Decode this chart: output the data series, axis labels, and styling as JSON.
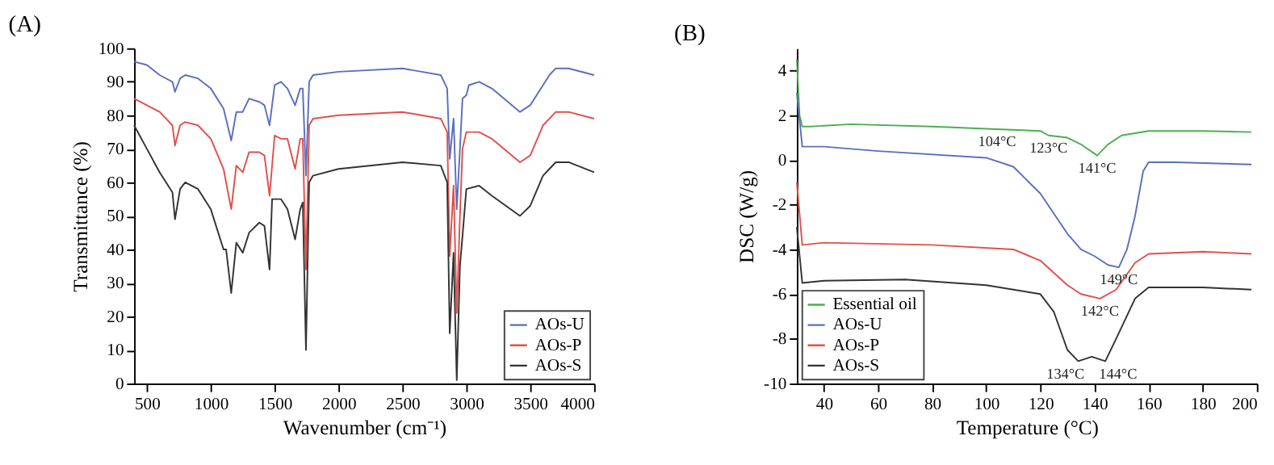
{
  "chart_data": [
    {
      "type": "line",
      "title": "(A)",
      "xlabel": "Wavenumber (cm⁻¹)",
      "ylabel": "Transmittance (%)",
      "xlim": [
        400,
        4000
      ],
      "xticks": [
        500,
        1000,
        1500,
        2000,
        2500,
        3000,
        3500,
        4000
      ],
      "ylim": [
        0,
        100
      ],
      "yticks": [
        0,
        10,
        20,
        30,
        40,
        50,
        60,
        70,
        80,
        90,
        100
      ],
      "grid": false,
      "legend": "bottom right",
      "marker": "none",
      "line_style": "solid",
      "series": [
        {
          "name": "AOs-U",
          "color": "#5a6fc0",
          "x": [
            400,
            500,
            600,
            700,
            720,
            760,
            800,
            900,
            1000,
            1100,
            1160,
            1200,
            1250,
            1300,
            1380,
            1420,
            1460,
            1500,
            1550,
            1600,
            1660,
            1700,
            1720,
            1745,
            1770,
            1800,
            2000,
            2500,
            2800,
            2850,
            2870,
            2900,
            2925,
            2950,
            2970,
            3000,
            3020,
            3100,
            3200,
            3420,
            3500,
            3600,
            3650,
            3700,
            3800,
            4000
          ],
          "values": [
            96,
            95,
            92,
            90,
            87,
            91,
            92,
            91,
            88,
            82,
            72.5,
            81,
            81,
            85,
            84,
            83,
            77,
            89,
            90,
            88,
            83,
            88,
            88,
            62,
            90,
            92,
            93,
            94,
            92,
            88,
            67,
            79,
            52,
            70,
            85,
            86,
            89,
            90,
            88,
            81,
            83,
            89,
            92,
            94,
            94,
            92
          ]
        },
        {
          "name": "AOs-P",
          "color": "#e0504a",
          "x": [
            400,
            500,
            600,
            700,
            720,
            760,
            800,
            900,
            1000,
            1100,
            1160,
            1200,
            1250,
            1300,
            1380,
            1420,
            1460,
            1500,
            1550,
            1600,
            1660,
            1700,
            1720,
            1745,
            1770,
            1800,
            2000,
            2500,
            2800,
            2850,
            2870,
            2900,
            2925,
            2950,
            2970,
            3000,
            3100,
            3200,
            3420,
            3500,
            3600,
            3700,
            3800,
            4000
          ],
          "values": [
            85,
            83,
            81,
            77,
            71,
            77,
            78,
            77,
            73,
            64,
            52,
            65,
            63,
            69,
            69,
            68,
            56,
            74,
            73,
            73,
            64,
            73,
            73,
            34,
            77,
            79,
            80,
            81,
            79,
            75,
            38,
            59,
            21,
            50,
            70,
            75,
            75,
            73,
            66,
            68,
            77,
            81,
            81,
            79
          ]
        },
        {
          "name": "AOs-S",
          "color": "#333333",
          "x": [
            400,
            500,
            600,
            700,
            720,
            760,
            800,
            900,
            1000,
            1100,
            1120,
            1160,
            1200,
            1250,
            1300,
            1380,
            1420,
            1460,
            1480,
            1550,
            1600,
            1660,
            1700,
            1720,
            1745,
            1770,
            1800,
            2000,
            2500,
            2800,
            2850,
            2870,
            2900,
            2925,
            2950,
            2970,
            3000,
            3100,
            3200,
            3420,
            3500,
            3600,
            3650,
            3700,
            3800,
            4000
          ],
          "values": [
            77,
            70,
            63,
            57,
            49,
            58,
            60,
            58,
            52,
            40,
            40,
            27,
            42,
            39,
            45,
            48,
            47,
            34,
            55,
            55,
            52,
            43,
            52,
            54,
            10,
            60,
            62,
            64,
            66,
            65,
            60,
            15,
            39,
            1,
            35,
            44,
            58,
            59,
            56,
            50,
            53,
            62,
            64,
            66,
            66,
            63
          ]
        }
      ]
    },
    {
      "type": "line",
      "title": "(B)",
      "xlabel": "Temperature (°C)",
      "ylabel": "DSC (W/g)",
      "xlim": [
        30,
        200
      ],
      "xticks": [
        40,
        60,
        80,
        100,
        120,
        140,
        160,
        180,
        200
      ],
      "ylim": [
        -10,
        5
      ],
      "yticks": [
        -10,
        -8,
        -6,
        -4,
        -2,
        0,
        2,
        4
      ],
      "grid": false,
      "legend": "bottom left",
      "marker": "none",
      "line_style": "solid",
      "series": [
        {
          "name": "Essential oil",
          "color": "#4caf50",
          "x": [
            30,
            31,
            32,
            35,
            50,
            80,
            100,
            120,
            123,
            130,
            135,
            141,
            145,
            150,
            160,
            180,
            198
          ],
          "values": [
            4.5,
            2,
            1.5,
            1.5,
            1.6,
            1.5,
            1.4,
            1.3,
            1.1,
            1.0,
            0.7,
            0.2,
            0.7,
            1.1,
            1.3,
            1.3,
            1.25
          ]
        },
        {
          "name": "AOs-U",
          "color": "#5a6fc0",
          "x": [
            30,
            32,
            40,
            60,
            100,
            110,
            120,
            130,
            135,
            140,
            145,
            149,
            152,
            155,
            158,
            160,
            170,
            198
          ],
          "values": [
            3,
            0.6,
            0.6,
            0.4,
            0.1,
            -0.3,
            -1.5,
            -3.3,
            -4.0,
            -4.3,
            -4.7,
            -4.8,
            -4.0,
            -2.5,
            -0.5,
            -0.1,
            -0.1,
            -0.2
          ]
        },
        {
          "name": "AOs-P",
          "color": "#e0504a",
          "x": [
            30,
            32,
            40,
            80,
            110,
            120,
            130,
            135,
            142,
            148,
            155,
            160,
            180,
            198
          ],
          "values": [
            -1,
            -3.8,
            -3.7,
            -3.8,
            -4.0,
            -4.5,
            -5.6,
            -6.0,
            -6.2,
            -5.8,
            -4.6,
            -4.2,
            -4.1,
            -4.2
          ]
        },
        {
          "name": "AOs-S",
          "color": "#333333",
          "x": [
            30,
            32,
            40,
            70,
            100,
            120,
            125,
            130,
            134,
            139,
            144,
            148,
            155,
            160,
            180,
            198
          ],
          "values": [
            -3,
            -5.5,
            -5.4,
            -5.35,
            -5.6,
            -6.0,
            -6.8,
            -8.5,
            -9.0,
            -8.8,
            -9.0,
            -8.0,
            -6.2,
            -5.7,
            -5.7,
            -5.8
          ]
        }
      ],
      "annotations": [
        {
          "text": "104°C",
          "x": 104,
          "y": 1.4
        },
        {
          "text": "123°C",
          "x": 123,
          "y": 1.1
        },
        {
          "text": "141°C",
          "x": 141,
          "y": 0.2
        },
        {
          "text": "149°C",
          "x": 149,
          "y": -4.8
        },
        {
          "text": "142°C",
          "x": 142,
          "y": -6.2
        },
        {
          "text": "134°C",
          "x": 134,
          "y": -9.0
        },
        {
          "text": "144°C",
          "x": 144,
          "y": -9.0
        }
      ]
    }
  ]
}
